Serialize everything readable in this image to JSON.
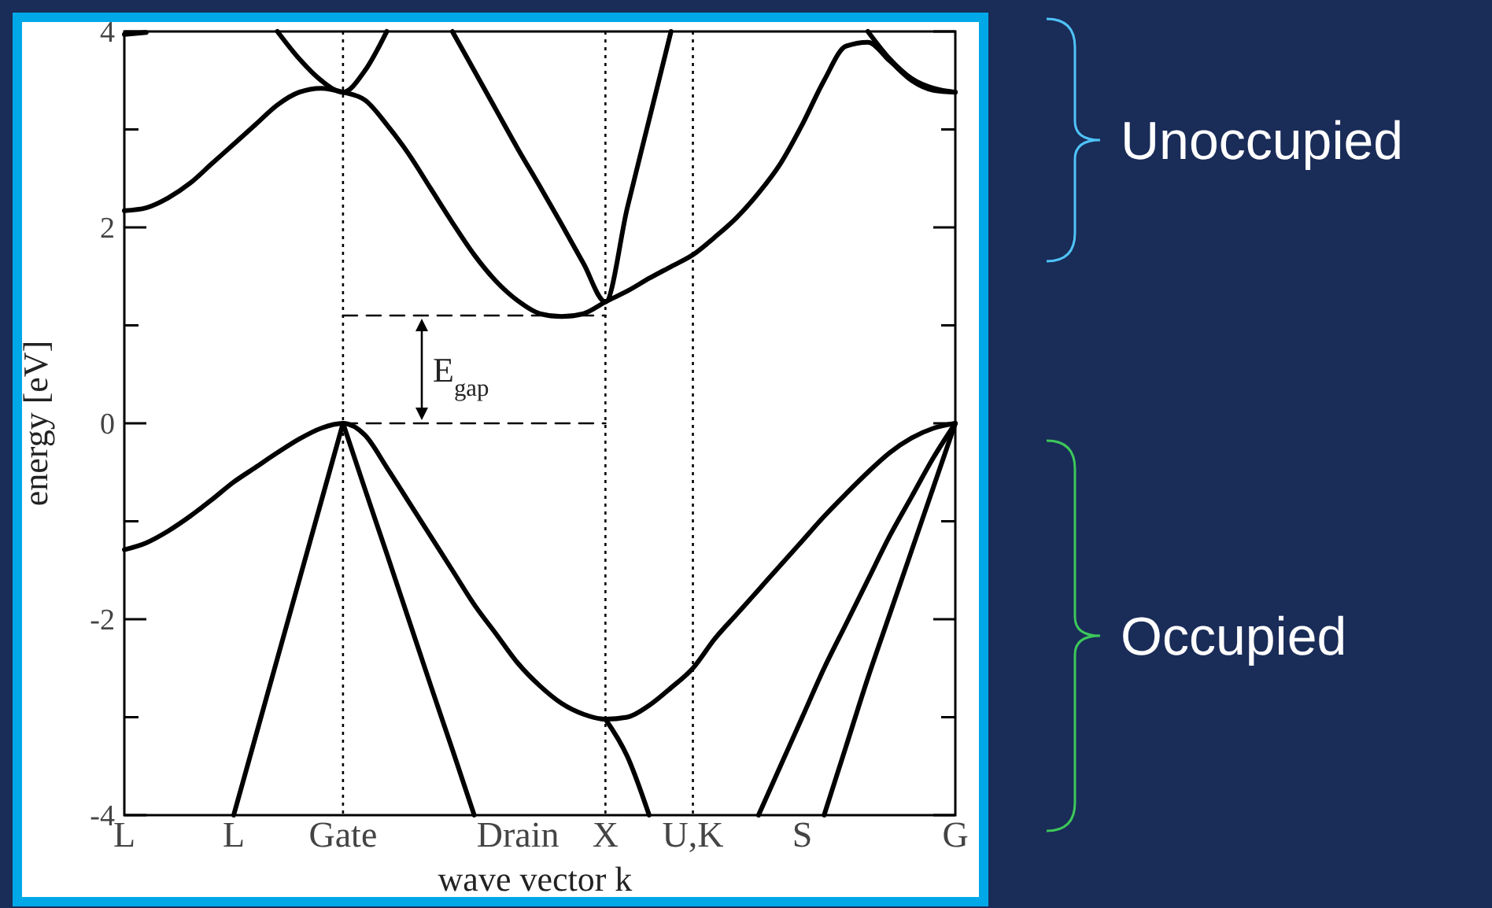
{
  "chart_data": {
    "type": "line",
    "xlabel": "wave vector k",
    "ylabel": "energy [eV]",
    "categories": [
      "L",
      null,
      null,
      null,
      null,
      "L",
      null,
      null,
      null,
      null,
      "Gate",
      null,
      null,
      null,
      null,
      null,
      null,
      null,
      "Drain",
      null,
      null,
      null,
      "X",
      null,
      null,
      null,
      "U,K",
      null,
      null,
      null,
      null,
      "S",
      null,
      null,
      null,
      null,
      null,
      null,
      "G"
    ],
    "ylim": [
      -4,
      4
    ],
    "yticks": [
      -4,
      {
        "value": -3,
        "label": null
      },
      -2,
      {
        "value": -1,
        "label": null
      },
      0,
      {
        "value": 1,
        "label": null
      },
      2,
      {
        "value": 3,
        "label": null
      },
      4
    ],
    "grid": false,
    "marker": "none",
    "line_style": "solid",
    "series": [
      {
        "color": "#000000",
        "values": [
          -1.29,
          -1.22,
          -1.1,
          -0.95,
          -0.78,
          -0.6,
          -0.45,
          -0.3,
          -0.16,
          -0.05,
          0,
          -0.12,
          -0.45,
          -0.8,
          -1.15,
          -1.5,
          -1.85,
          -2.15,
          -2.45,
          -2.68,
          -2.86,
          -2.97,
          -3.02,
          -3.0,
          -2.88,
          -2.7,
          -2.5,
          -2.2,
          -1.95,
          -1.7,
          -1.45,
          -1.2,
          -0.95,
          -0.72,
          -0.5,
          -0.3,
          -0.15,
          -0.05,
          0
        ]
      },
      {
        "color": "#000000",
        "values": [
          null,
          null,
          null,
          null,
          null,
          null,
          null,
          null,
          null,
          null,
          0,
          -0.67,
          -1.33,
          -2,
          -2.67,
          -3.33,
          -4,
          null,
          null,
          null,
          null,
          null,
          null,
          null,
          null,
          null,
          null,
          null,
          null,
          null,
          null,
          null,
          null,
          null,
          null,
          null,
          null,
          null,
          null
        ]
      },
      {
        "color": "#000000",
        "values": [
          null,
          null,
          null,
          null,
          null,
          null,
          null,
          null,
          null,
          null,
          null,
          null,
          null,
          null,
          null,
          null,
          null,
          null,
          null,
          null,
          null,
          null,
          -3.02,
          -3.4,
          -4,
          null,
          null,
          null,
          null,
          null,
          null,
          null,
          null,
          null,
          null,
          null,
          null,
          null,
          null
        ]
      },
      {
        "color": "#000000",
        "values": [
          null,
          null,
          null,
          null,
          null,
          -4,
          -3.2,
          -2.4,
          -1.6,
          -0.8,
          0,
          null,
          null,
          null,
          null,
          null,
          null,
          null,
          null,
          null,
          null,
          null,
          null,
          null,
          null,
          null,
          null,
          null,
          null,
          null,
          null,
          null,
          null,
          null,
          null,
          null,
          null,
          null,
          null
        ]
      },
      {
        "color": "#000000",
        "values": [
          null,
          null,
          null,
          null,
          null,
          null,
          null,
          null,
          null,
          null,
          null,
          null,
          null,
          null,
          null,
          null,
          null,
          null,
          null,
          null,
          null,
          null,
          null,
          null,
          null,
          null,
          null,
          null,
          null,
          -4,
          -3.5,
          -3.0,
          -2.5,
          -2.05,
          -1.6,
          -1.15,
          -0.75,
          -0.35,
          0
        ]
      },
      {
        "color": "#000000",
        "values": [
          null,
          null,
          null,
          null,
          null,
          null,
          null,
          null,
          null,
          null,
          null,
          null,
          null,
          null,
          null,
          null,
          null,
          null,
          null,
          null,
          null,
          null,
          null,
          null,
          null,
          null,
          null,
          null,
          null,
          null,
          null,
          null,
          -4,
          -3.3,
          -2.6,
          -1.95,
          -1.3,
          -0.65,
          0
        ]
      },
      {
        "color": "#000000",
        "values": [
          2.17,
          2.2,
          2.3,
          2.45,
          2.65,
          2.85,
          3.05,
          3.25,
          3.38,
          3.42,
          3.38,
          3.3,
          3.05,
          2.75,
          2.4,
          2.05,
          1.72,
          1.45,
          1.25,
          1.12,
          1.09,
          1.12,
          1.24,
          1.35,
          1.48,
          1.6,
          1.72,
          1.9,
          2.1,
          2.35,
          2.65,
          3.05,
          3.5,
          3.85,
          3.89,
          3.7,
          3.5,
          3.4,
          3.38
        ]
      },
      {
        "color": "#000000",
        "values": [
          null,
          null,
          null,
          null,
          null,
          null,
          null,
          null,
          null,
          null,
          null,
          null,
          null,
          null,
          null,
          4.0,
          3.6,
          3.2,
          2.8,
          2.42,
          2.03,
          1.63,
          1.24,
          2.2,
          3.1,
          4.0,
          null,
          null,
          null,
          null,
          null,
          null,
          null,
          null,
          null,
          null,
          null,
          null,
          null
        ]
      },
      {
        "color": "#000000",
        "values": [
          null,
          null,
          null,
          null,
          null,
          null,
          null,
          null,
          null,
          null,
          null,
          null,
          null,
          null,
          null,
          null,
          null,
          null,
          null,
          null,
          null,
          null,
          null,
          null,
          null,
          null,
          null,
          null,
          null,
          null,
          null,
          null,
          null,
          null,
          4.0,
          3.72,
          3.52,
          3.42,
          3.38
        ]
      },
      {
        "color": "#000000",
        "values": [
          null,
          null,
          null,
          null,
          null,
          null,
          null,
          4.0,
          3.72,
          3.5,
          3.38,
          3.6,
          4.0,
          null,
          null,
          null,
          null,
          null,
          null,
          null,
          null,
          null,
          null,
          null,
          null,
          null,
          null,
          null,
          null,
          null,
          null,
          null,
          null,
          null,
          null,
          null,
          null,
          null,
          null
        ]
      },
      {
        "color": "#000000",
        "values": [
          3.97,
          3.99,
          null,
          null,
          null,
          null,
          null,
          null,
          null,
          null,
          null,
          null,
          null,
          null,
          null,
          null,
          null,
          null,
          null,
          null,
          null,
          null,
          null,
          null,
          null,
          null,
          null,
          null,
          null,
          null,
          null,
          null,
          null,
          null,
          null,
          null,
          null,
          null,
          null
        ]
      },
      {
        "color": "#000000",
        "line_style": "dashed",
        "values": [
          null,
          null,
          null,
          null,
          null,
          null,
          null,
          null,
          null,
          null,
          1.1,
          1.1,
          1.1,
          1.1,
          1.1,
          1.1,
          1.1,
          1.1,
          1.1,
          1.1,
          1.1,
          1.1,
          1.1,
          null,
          null,
          null,
          null,
          null,
          null,
          null,
          null,
          null,
          null,
          null,
          null,
          null,
          null,
          null,
          null
        ]
      },
      {
        "color": "#000000",
        "line_style": "dashed",
        "values": [
          null,
          null,
          null,
          null,
          null,
          null,
          null,
          null,
          null,
          null,
          0,
          0,
          0,
          0,
          0,
          0,
          0,
          0,
          0,
          0,
          0,
          0,
          0,
          null,
          null,
          null,
          null,
          null,
          null,
          null,
          null,
          null,
          null,
          null,
          null,
          null,
          null,
          null,
          null
        ]
      }
    ],
    "ref_lines": [
      {
        "axis": "x",
        "value": "Gate",
        "line_style": "dotted"
      },
      {
        "axis": "x",
        "value": "X",
        "line_style": "dotted"
      },
      {
        "axis": "x",
        "value": "U,K",
        "line_style": "dotted"
      }
    ],
    "annotations": [
      "E$_{gap}$",
      "Unoccupied",
      "Occupied"
    ]
  }
}
